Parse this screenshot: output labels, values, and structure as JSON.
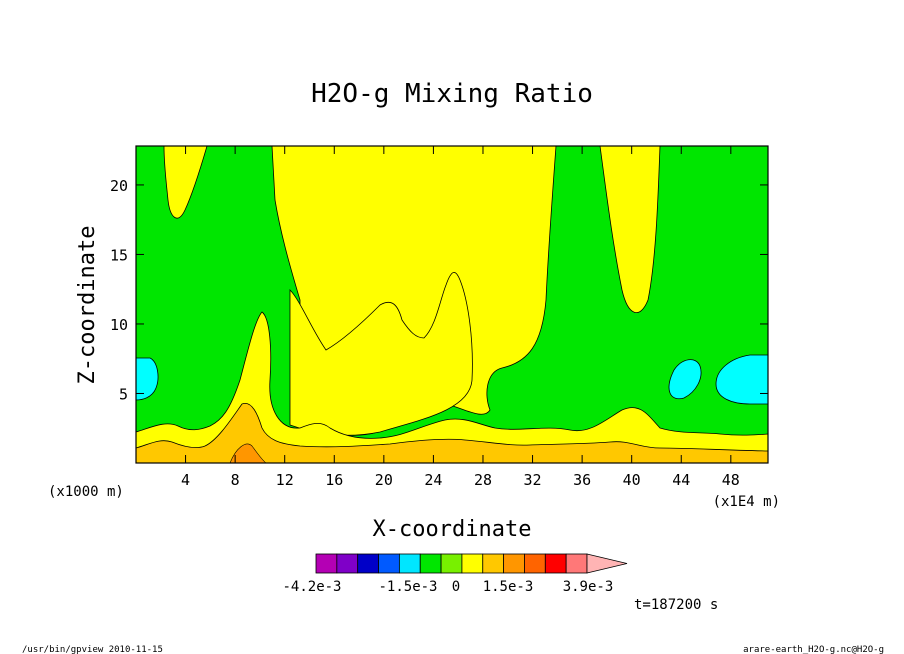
{
  "chart_data": {
    "type": "contour",
    "title": "H2O-g Mixing Ratio",
    "xlabel": "X-coordinate",
    "ylabel": "Z-coordinate",
    "x_unit_label": "(x1E4 m)",
    "y_unit_label": "(x1000 m)",
    "xlim": [
      0,
      51
    ],
    "ylim": [
      0,
      22.8
    ],
    "x_ticks": [
      4,
      8,
      12,
      16,
      20,
      24,
      28,
      32,
      36,
      40,
      44,
      48
    ],
    "y_ticks": [
      5,
      10,
      15,
      20
    ],
    "time_label": "t=187200 s",
    "colorbar": {
      "tick_labels": [
        "-4.2e-3",
        "-1.5e-3",
        "0",
        "1.5e-3",
        "3.9e-3"
      ],
      "colors": [
        "#b400b4",
        "#7f00c8",
        "#0000c8",
        "#005aff",
        "#00e6ff",
        "#00e600",
        "#78f000",
        "#ffff00",
        "#ffc800",
        "#ff9600",
        "#ff6400",
        "#ff0000",
        "#ff7878",
        "#ffb4b4"
      ]
    },
    "regions": {
      "background": "green",
      "yellow_regions": 4,
      "cyan_regions": 3,
      "low_level_bands": [
        "yellow",
        "orange"
      ]
    }
  },
  "footer": {
    "left": "/usr/bin/gpview  2010-11-15",
    "right": "arare-earth_H2O-g.nc@H2O-g"
  }
}
